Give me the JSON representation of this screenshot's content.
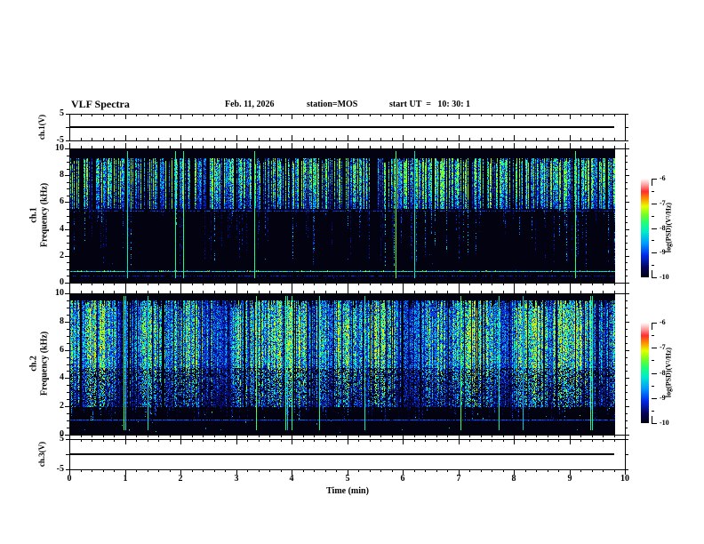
{
  "header": {
    "title": "VLF Spectra",
    "date": "Feb. 11, 2026",
    "station": "station=MOS",
    "start_ut": "start UT  =   10: 30: 1"
  },
  "axes": {
    "time": {
      "label": "Time (min)",
      "range": [
        0,
        10
      ],
      "ticks": [
        "0",
        "1",
        "2",
        "3",
        "4",
        "5",
        "6",
        "7",
        "8",
        "9",
        "10"
      ],
      "minor_step_min": 0.2
    },
    "frequency": {
      "label": "Frequency (kHz)",
      "range": [
        0,
        10
      ],
      "ticks": [
        "0",
        "2",
        "4",
        "6",
        "8",
        "10"
      ],
      "minor_step_khz": 0.5
    },
    "voltage": {
      "range": [
        -5,
        5
      ],
      "ticks": [
        "5",
        "-5"
      ]
    }
  },
  "panels": {
    "ch1_voltage": {
      "ylabel": "ch.1(V)"
    },
    "ch1_spectrogram": {
      "ylabel_line1": "ch.1",
      "ylabel_line2": "Frequency (kHz)"
    },
    "ch2_spectrogram": {
      "ylabel_line1": "ch.2",
      "ylabel_line2": "Frequency (kHz)"
    },
    "ch3_voltage": {
      "ylabel": "ch.3(V)"
    }
  },
  "colorbar": {
    "label": "log(PSD)(V²/Hz)",
    "range": [
      -10,
      -6
    ],
    "ticks": [
      "-6",
      "-7",
      "-8",
      "-9",
      "-10"
    ],
    "stops": [
      [
        0.0,
        2,
        2,
        16
      ],
      [
        0.1,
        4,
        4,
        90
      ],
      [
        0.22,
        0,
        40,
        230
      ],
      [
        0.34,
        0,
        150,
        255
      ],
      [
        0.46,
        0,
        235,
        205
      ],
      [
        0.55,
        30,
        255,
        120
      ],
      [
        0.63,
        110,
        255,
        40
      ],
      [
        0.72,
        230,
        255,
        0
      ],
      [
        0.8,
        255,
        140,
        0
      ],
      [
        0.87,
        255,
        45,
        45
      ],
      [
        0.94,
        255,
        165,
        165
      ],
      [
        1.0,
        255,
        255,
        255
      ]
    ]
  },
  "chart_data": [
    {
      "type": "line",
      "panel": "ch.1 voltage strip",
      "ylabel": "ch.1(V)",
      "xlim": [
        0,
        10
      ],
      "ylim": [
        -5,
        5
      ],
      "series": [
        {
          "name": "ch.1 waveform",
          "x": [
            0,
            9.8
          ],
          "values": [
            0,
            0
          ],
          "description": "flat trace at 0 V across record"
        }
      ]
    },
    {
      "type": "heatmap",
      "panel": "ch.1 spectrogram",
      "ylabel": "ch.1 Frequency (kHz)",
      "zlabel": "log(PSD)(V²/Hz)",
      "xlim": [
        0,
        10
      ],
      "ylim": [
        0,
        10
      ],
      "zlim": [
        -10,
        -6
      ],
      "data_end_min": 9.8,
      "features": [
        "dense blue/cyan sferic streaks confined mainly to 5.6-9.3 kHz band",
        "sparse faint streak tails reaching down to ~1 kHz",
        "occasional full-height green transient streaks",
        "faint dotted horizontal line near 5.4 kHz",
        "bright cyan horizontal line near 0.8 kHz with sporadic yellow/red hot spots",
        "background near -10 (black)"
      ],
      "render": {
        "seed": 20260211,
        "fmax": 10,
        "band": {
          "f0": 5.6,
          "f1": 9.35
        },
        "band_core": 8.3,
        "p_active": 0.6,
        "amp0": 0.25,
        "amp_pow": 1.5,
        "gain": 1.5,
        "vmax": 0.66,
        "top_jitter": 7,
        "tail": {
          "p": 0.3,
          "fmin": 1.0
        },
        "full_p": 0.012,
        "noise_p": 0.012,
        "hlines": [
          {
            "f": 5.38,
            "p": 0.55,
            "lo": 0.16,
            "hi": 0.3
          },
          {
            "f": 0.78,
            "p": 0.97,
            "lo": 0.3,
            "hi": 0.55,
            "hot_p": 0.07,
            "hot_lo": 0.6,
            "hot_hi": 0.9
          },
          {
            "f": 0.45,
            "p": 0.45,
            "lo": 0.14,
            "hi": 0.26
          }
        ]
      }
    },
    {
      "type": "heatmap",
      "panel": "ch.2 spectrogram",
      "ylabel": "ch.2 Frequency (kHz)",
      "zlabel": "log(PSD)(V²/Hz)",
      "xlim": [
        0,
        10
      ],
      "ylim": [
        0,
        10
      ],
      "zlim": [
        -10,
        -6
      ],
      "data_end_min": 9.8,
      "features": [
        "very dense activity 2-9.5 kHz with bright green/yellow-green patches between ~5 and 8.7 kHz",
        "blue streaks extending down to 2 kHz, sparser with depth",
        "occasional full-height green transient streaks and rare red dots near 3-4 kHz",
        "thin blue horizontal line near 1 kHz and scattered bright dots below 2 kHz",
        "background near -10 (black)"
      ],
      "render": {
        "seed": 777001,
        "fmax": 10,
        "band": {
          "f0": 2.0,
          "f1": 9.55
        },
        "band_core": 7.0,
        "p_active": 0.88,
        "amp0": 0.3,
        "amp_pow": 1.2,
        "gain": 1.35,
        "vmax": 0.74,
        "top_jitter": 10,
        "blob": [
          [
            17,
            0.7
          ],
          [
            43,
            2.1
          ],
          [
            8.5,
            4.0
          ]
        ],
        "sparse_below": {
          "offset": 35,
          "skip": 0.35
        },
        "tail": {
          "p": 0.25,
          "fmin": 0.9
        },
        "full_p": 0.02,
        "noise_p": 0.012,
        "hlines": [
          {
            "f": 1.05,
            "p": 0.9,
            "lo": 0.2,
            "hi": 0.32
          }
        ],
        "dots": {
          "f0": 0.15,
          "f1": 1.9,
          "p": 0.04,
          "lo": 0.3,
          "hi": 0.65
        },
        "red_p": 0.0035
      }
    },
    {
      "type": "line",
      "panel": "ch.3 voltage strip",
      "ylabel": "ch.3(V)",
      "xlim": [
        0,
        10
      ],
      "ylim": [
        -5,
        5
      ],
      "series": [
        {
          "name": "ch.3 waveform",
          "x": [
            0,
            9.8
          ],
          "values": [
            0,
            0
          ],
          "description": "flat trace at 0 V across record"
        }
      ]
    }
  ]
}
